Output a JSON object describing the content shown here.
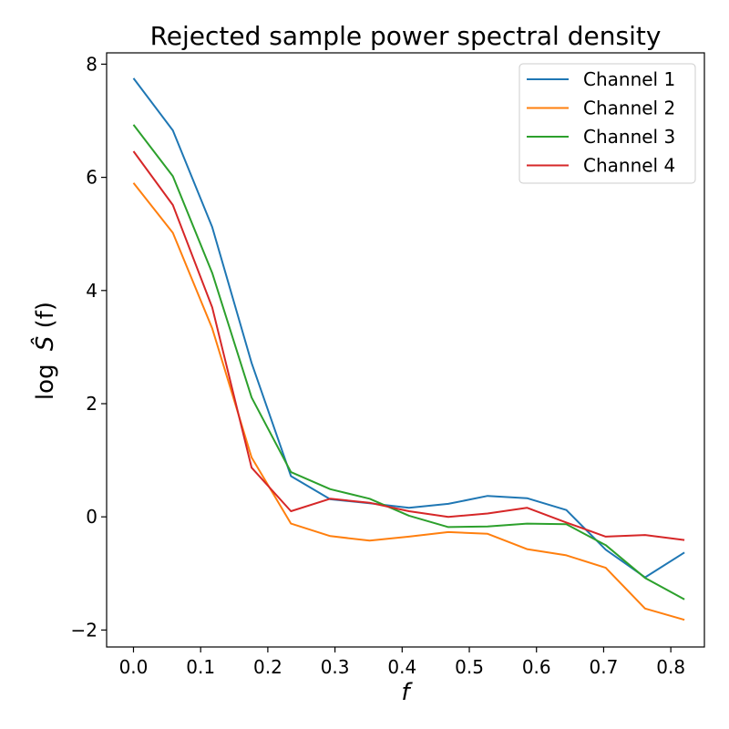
{
  "chart_data": {
    "type": "line",
    "title": "Rejected sample power spectral density",
    "xlabel": "f",
    "ylabel": {
      "prefix": "log",
      "symbol": "Ŝ",
      "suffix": "(f)"
    },
    "xlim": [
      -0.04,
      0.85
    ],
    "ylim": [
      -2.3,
      8.2
    ],
    "xticks": [
      0.0,
      0.1,
      0.2,
      0.3,
      0.4,
      0.5,
      0.6,
      0.7,
      0.8
    ],
    "xtick_labels": [
      "0.0",
      "0.1",
      "0.2",
      "0.3",
      "0.4",
      "0.5",
      "0.6",
      "0.7",
      "0.8"
    ],
    "yticks": [
      -2,
      0,
      2,
      4,
      6,
      8
    ],
    "ytick_labels": [
      "−2",
      "0",
      "2",
      "4",
      "6",
      "8"
    ],
    "legend_position": "top-right",
    "grid": false,
    "x": [
      0.0,
      0.0586,
      0.1172,
      0.1758,
      0.2344,
      0.293,
      0.3516,
      0.4102,
      0.4688,
      0.5273,
      0.5859,
      0.6445,
      0.7031,
      0.7617,
      0.8203
    ],
    "series": [
      {
        "name": "Channel 1",
        "color": "#1f77b4",
        "values": [
          7.75,
          6.83,
          5.12,
          2.72,
          0.72,
          0.31,
          0.24,
          0.16,
          0.23,
          0.37,
          0.33,
          0.12,
          -0.58,
          -1.07,
          -0.63
        ]
      },
      {
        "name": "Channel 2",
        "color": "#ff7f0e",
        "values": [
          5.9,
          5.02,
          3.33,
          1.05,
          -0.12,
          -0.34,
          -0.42,
          -0.35,
          -0.27,
          -0.3,
          -0.57,
          -0.68,
          -0.9,
          -1.62,
          -1.82
        ]
      },
      {
        "name": "Channel 3",
        "color": "#2ca02c",
        "values": [
          6.93,
          6.02,
          4.31,
          2.11,
          0.79,
          0.49,
          0.32,
          0.02,
          -0.18,
          -0.17,
          -0.12,
          -0.13,
          -0.5,
          -1.08,
          -1.46
        ]
      },
      {
        "name": "Channel 4",
        "color": "#d62728",
        "values": [
          6.46,
          5.51,
          3.7,
          0.87,
          0.1,
          0.32,
          0.25,
          0.1,
          0.0,
          0.06,
          0.16,
          -0.1,
          -0.35,
          -0.32,
          -0.41
        ]
      }
    ]
  }
}
